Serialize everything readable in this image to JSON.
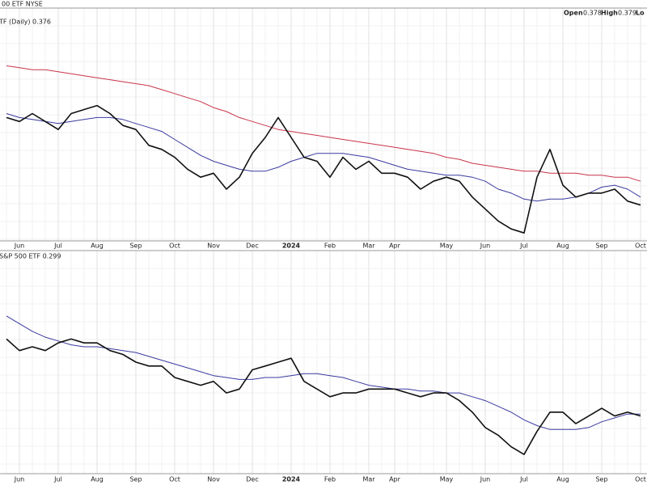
{
  "header": {
    "symbol": "00 ETF NYSE",
    "open_label": "Open",
    "open": "0.378",
    "high_label": "High",
    "high": "0.379",
    "low_label": "Lo"
  },
  "chart_data": [
    {
      "type": "line",
      "legend": "TF (Daily) 0.376",
      "categories": [
        null,
        "Jun",
        null,
        null,
        "Jul",
        null,
        null,
        "Aug",
        null,
        null,
        "Sep",
        null,
        null,
        "Oct",
        null,
        null,
        "Nov",
        null,
        null,
        "Dec",
        null,
        null,
        "2024",
        null,
        null,
        "Feb",
        null,
        null,
        "Mar",
        null,
        "Apr",
        null,
        null,
        null,
        "May",
        null,
        null,
        "Jun",
        null,
        null,
        "Jul",
        null,
        null,
        "Aug",
        null,
        null,
        "Sep",
        null,
        null,
        "Oct"
      ],
      "ylim": [
        0.358,
        0.475
      ],
      "series": [
        {
          "color": "#111111",
          "values": [
            0.42,
            0.418,
            0.422,
            0.418,
            0.414,
            0.422,
            0.424,
            0.426,
            0.422,
            0.416,
            0.414,
            0.406,
            0.404,
            0.4,
            0.394,
            0.39,
            0.392,
            0.384,
            0.39,
            0.402,
            0.41,
            0.42,
            0.41,
            0.4,
            0.398,
            0.39,
            0.4,
            0.394,
            0.398,
            0.392,
            0.392,
            0.39,
            0.384,
            0.388,
            0.39,
            0.388,
            0.38,
            0.374,
            0.368,
            0.364,
            0.362,
            0.39,
            0.404,
            0.386,
            0.38,
            0.382,
            0.382,
            0.384,
            0.378,
            0.376
          ]
        },
        {
          "color": "#3a3aa0",
          "values": [
            0.422,
            0.42,
            0.419,
            0.418,
            0.417,
            0.418,
            0.419,
            0.42,
            0.42,
            0.419,
            0.417,
            0.415,
            0.413,
            0.409,
            0.405,
            0.401,
            0.398,
            0.396,
            0.394,
            0.393,
            0.393,
            0.395,
            0.398,
            0.4,
            0.402,
            0.402,
            0.402,
            0.401,
            0.4,
            0.398,
            0.396,
            0.394,
            0.393,
            0.392,
            0.391,
            0.391,
            0.39,
            0.388,
            0.384,
            0.382,
            0.379,
            0.378,
            0.379,
            0.379,
            0.38,
            0.382,
            0.385,
            0.386,
            0.384,
            0.38
          ]
        },
        {
          "color": "#c8344a",
          "values": [
            0.446,
            0.445,
            0.444,
            0.444,
            0.443,
            0.442,
            0.441,
            0.44,
            0.439,
            0.438,
            0.437,
            0.436,
            0.434,
            0.432,
            0.43,
            0.428,
            0.425,
            0.423,
            0.42,
            0.418,
            0.416,
            0.414,
            0.413,
            0.412,
            0.411,
            0.41,
            0.409,
            0.408,
            0.407,
            0.406,
            0.405,
            0.404,
            0.403,
            0.402,
            0.4,
            0.399,
            0.397,
            0.396,
            0.395,
            0.394,
            0.393,
            0.393,
            0.392,
            0.392,
            0.392,
            0.391,
            0.391,
            0.39,
            0.39,
            0.388
          ]
        }
      ]
    },
    {
      "type": "line",
      "legend": "S&P 500 ETF 0.299",
      "categories": [
        null,
        "Jun",
        null,
        null,
        "Jul",
        null,
        null,
        "Aug",
        null,
        null,
        "Sep",
        null,
        null,
        "Oct",
        null,
        null,
        "Nov",
        null,
        null,
        "Dec",
        null,
        null,
        "2024",
        null,
        null,
        "Feb",
        null,
        null,
        "Mar",
        null,
        "Apr",
        null,
        null,
        null,
        "May",
        null,
        null,
        "Jun",
        null,
        null,
        "Jul",
        null,
        null,
        "Aug",
        null,
        null,
        "Sep",
        null,
        null,
        "Oct"
      ],
      "ylim": [
        0.269,
        0.385
      ],
      "series": [
        {
          "color": "#111111",
          "values": [
            0.339,
            0.333,
            0.335,
            0.333,
            0.337,
            0.339,
            0.337,
            0.337,
            0.333,
            0.331,
            0.327,
            0.325,
            0.325,
            0.319,
            0.317,
            0.315,
            0.317,
            0.311,
            0.313,
            0.323,
            0.325,
            0.327,
            0.329,
            0.317,
            0.313,
            0.309,
            0.311,
            0.311,
            0.313,
            0.313,
            0.313,
            0.311,
            0.309,
            0.311,
            0.311,
            0.307,
            0.301,
            0.293,
            0.289,
            0.283,
            0.279,
            0.291,
            0.301,
            0.301,
            0.295,
            0.299,
            0.303,
            0.299,
            0.301,
            0.299
          ]
        },
        {
          "color": "#3a3aa0",
          "values": [
            0.351,
            0.347,
            0.343,
            0.34,
            0.338,
            0.336,
            0.335,
            0.335,
            0.334,
            0.333,
            0.332,
            0.33,
            0.328,
            0.326,
            0.324,
            0.322,
            0.32,
            0.319,
            0.318,
            0.318,
            0.319,
            0.319,
            0.32,
            0.321,
            0.321,
            0.32,
            0.319,
            0.317,
            0.315,
            0.314,
            0.313,
            0.313,
            0.312,
            0.312,
            0.311,
            0.311,
            0.309,
            0.307,
            0.304,
            0.301,
            0.297,
            0.294,
            0.292,
            0.292,
            0.292,
            0.293,
            0.296,
            0.298,
            0.3,
            0.3
          ]
        }
      ]
    }
  ]
}
